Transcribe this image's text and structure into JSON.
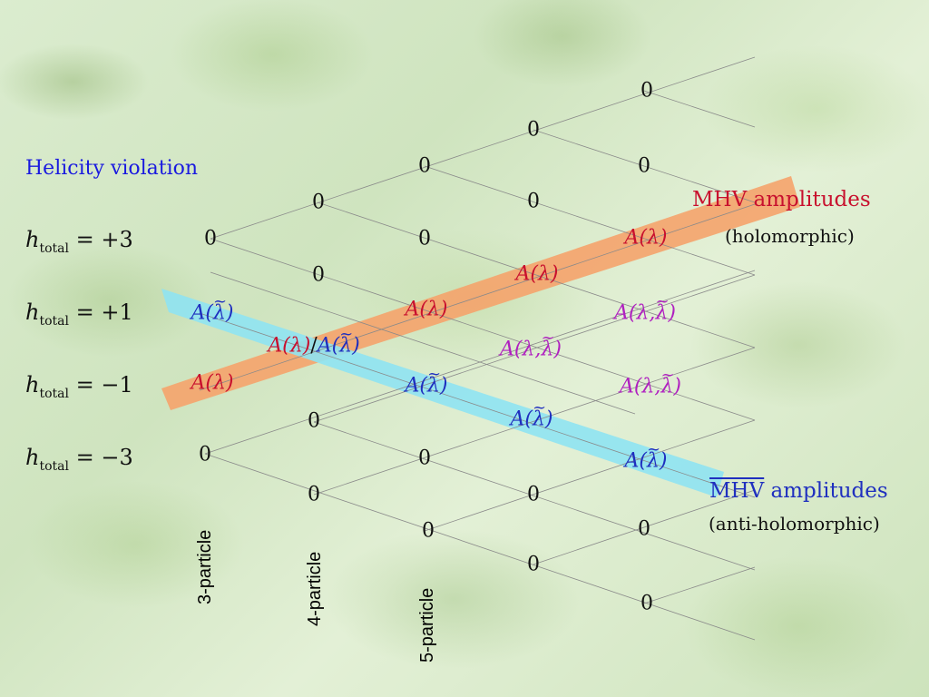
{
  "title": "Helicity violation",
  "helicity_rows": [
    {
      "h": "h",
      "sub": "total",
      "rhs": "= +3"
    },
    {
      "h": "h",
      "sub": "total",
      "rhs": "= +1"
    },
    {
      "h": "h",
      "sub": "total",
      "rhs": "= −1"
    },
    {
      "h": "h",
      "sub": "total",
      "rhs": "= −3"
    }
  ],
  "zero_label": "0",
  "amplitudes": {
    "mhv": "A(λ)",
    "mhvbar_open": "A(",
    "mhvbar_close": ")",
    "lambda_tilde": "λ",
    "mixed_open": "A(λ,",
    "mixed_close": ")",
    "four_mhv": "A(λ)",
    "four_sep": "/",
    "four_bar_open": "A(",
    "four_bar_close": ")"
  },
  "mhv_band": {
    "label": "MHV amplitudes",
    "note": "(holomorphic)",
    "color": "#f5a36b"
  },
  "mhvbar_band": {
    "label_over": "MHV",
    "label_rest": " amplitudes",
    "note": "(anti-holomorphic)",
    "color": "#8fe3f2"
  },
  "columns": [
    "3-particle",
    "4-particle",
    "5-particle"
  ],
  "colors": {
    "red": "#c8102e",
    "blue": "#1f2fbf",
    "magenta": "#b020c0",
    "title_blue": "#1a1adf"
  }
}
